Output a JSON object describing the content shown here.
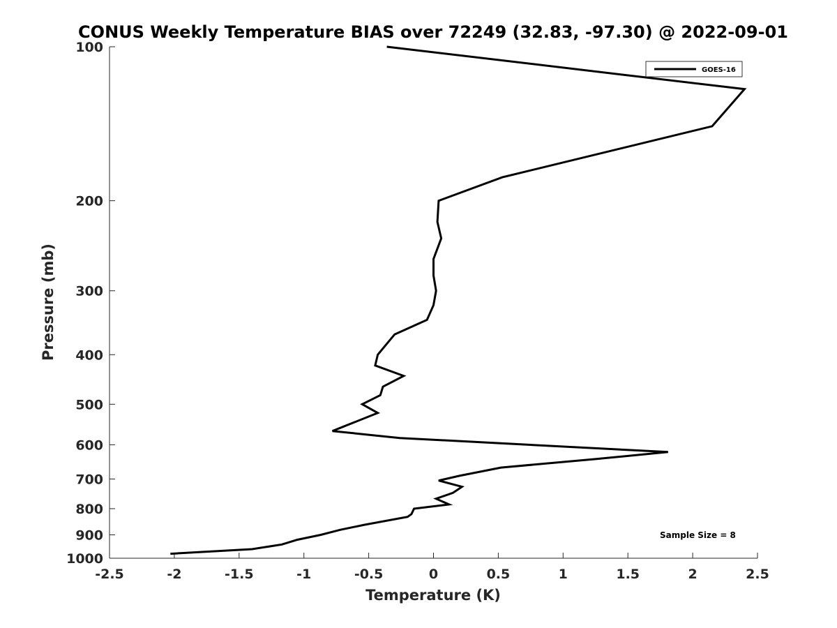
{
  "chart_data": {
    "type": "line",
    "title": "CONUS Weekly Temperature BIAS over 72249 (32.83, -97.30) @ 2022-09-01",
    "xlabel": "Temperature (K)",
    "ylabel": "Pressure (mb)",
    "xlim": [
      -2.5,
      2.5
    ],
    "ylim": [
      100,
      1000
    ],
    "y_scale": "log",
    "y_reversed": true,
    "x_ticks": [
      -2.5,
      -2,
      -1.5,
      -1,
      -0.5,
      0,
      0.5,
      1,
      1.5,
      2,
      2.5
    ],
    "x_tick_labels": [
      "-2.5",
      "-2",
      "-1.5",
      "-1",
      "-0.5",
      "0",
      "0.5",
      "1",
      "1.5",
      "2",
      "2.5"
    ],
    "y_ticks": [
      100,
      200,
      300,
      400,
      500,
      600,
      700,
      800,
      900,
      1000
    ],
    "y_tick_labels": [
      "100",
      "200",
      "300",
      "400",
      "500",
      "600",
      "700",
      "800",
      "900",
      "1000"
    ],
    "grid": false,
    "legend_position": "top-right",
    "annotation": "Sample Size = 8",
    "series": [
      {
        "name": "GOES-16",
        "color": "#000000",
        "points": [
          {
            "x": -0.36,
            "y": 100
          },
          {
            "x": 2.4,
            "y": 121
          },
          {
            "x": 2.15,
            "y": 143
          },
          {
            "x": 0.53,
            "y": 180
          },
          {
            "x": 0.04,
            "y": 200
          },
          {
            "x": 0.03,
            "y": 220
          },
          {
            "x": 0.06,
            "y": 237
          },
          {
            "x": 0.0,
            "y": 260
          },
          {
            "x": 0.0,
            "y": 280
          },
          {
            "x": 0.02,
            "y": 300
          },
          {
            "x": 0.0,
            "y": 320
          },
          {
            "x": -0.05,
            "y": 342
          },
          {
            "x": -0.3,
            "y": 365
          },
          {
            "x": -0.43,
            "y": 400
          },
          {
            "x": -0.45,
            "y": 420
          },
          {
            "x": -0.23,
            "y": 440
          },
          {
            "x": -0.39,
            "y": 462
          },
          {
            "x": -0.41,
            "y": 480
          },
          {
            "x": -0.55,
            "y": 500
          },
          {
            "x": -0.43,
            "y": 520
          },
          {
            "x": -0.78,
            "y": 564
          },
          {
            "x": -0.26,
            "y": 582
          },
          {
            "x": 1.81,
            "y": 620
          },
          {
            "x": 1.25,
            "y": 640
          },
          {
            "x": 0.52,
            "y": 665
          },
          {
            "x": 0.2,
            "y": 690
          },
          {
            "x": 0.04,
            "y": 705
          },
          {
            "x": 0.22,
            "y": 725
          },
          {
            "x": 0.15,
            "y": 745
          },
          {
            "x": 0.02,
            "y": 765
          },
          {
            "x": 0.12,
            "y": 785
          },
          {
            "x": -0.15,
            "y": 800
          },
          {
            "x": -0.17,
            "y": 820
          },
          {
            "x": -0.2,
            "y": 830
          },
          {
            "x": -0.53,
            "y": 860
          },
          {
            "x": -0.72,
            "y": 880
          },
          {
            "x": -0.87,
            "y": 900
          },
          {
            "x": -1.05,
            "y": 920
          },
          {
            "x": -1.17,
            "y": 940
          },
          {
            "x": -1.4,
            "y": 960
          },
          {
            "x": -2.03,
            "y": 980
          }
        ]
      }
    ]
  }
}
